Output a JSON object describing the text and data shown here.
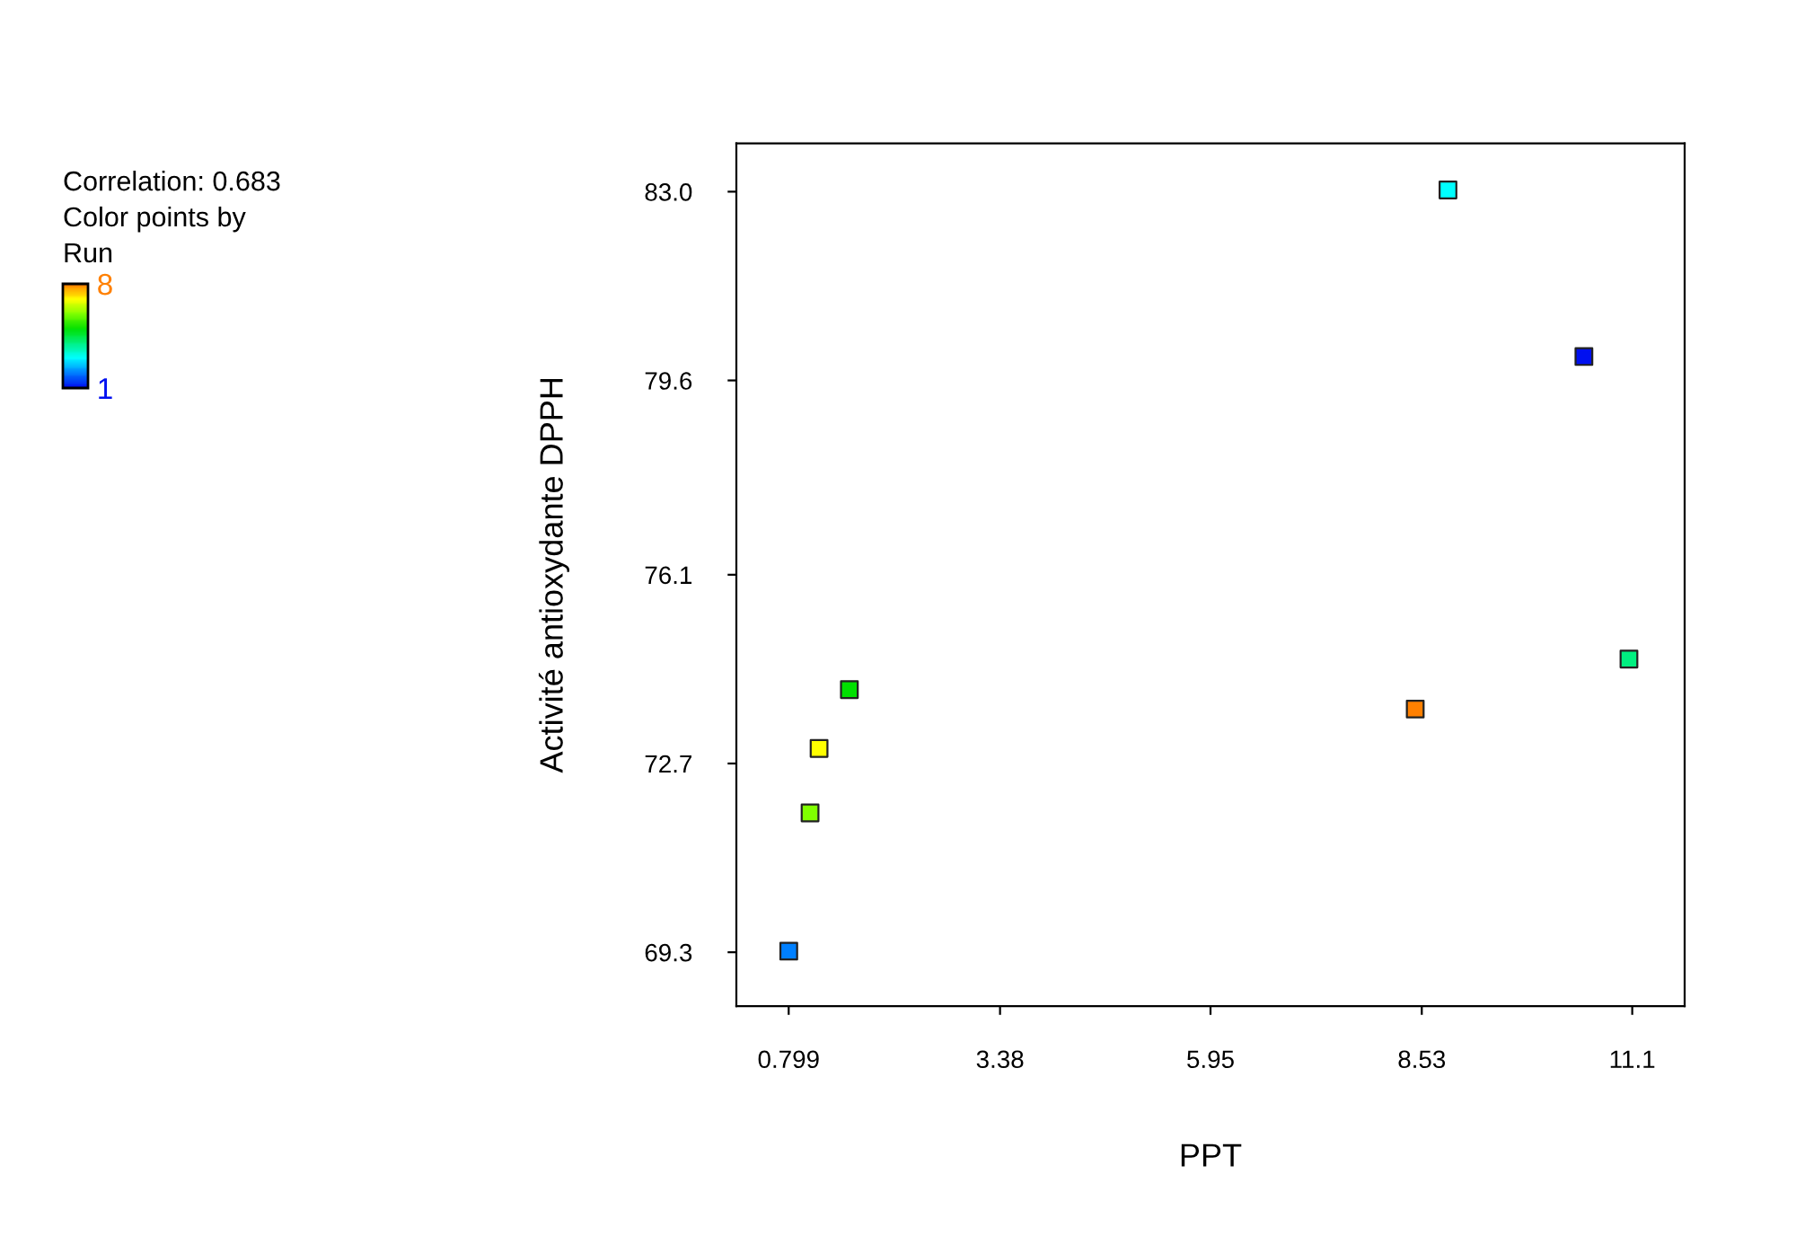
{
  "chart_data": {
    "type": "scatter",
    "xlabel": "PPT",
    "ylabel": "Activité antioxydante DPPH",
    "clabel": "Run",
    "annotations": [
      "Correlation: 0.683",
      "Color points by"
    ],
    "x": [
      10.51,
      0.8,
      8.85,
      11.06,
      1.54,
      1.06,
      1.17,
      8.45
    ],
    "values": [
      80.03,
      69.32,
      83.03,
      74.58,
      74.03,
      71.81,
      72.97,
      73.68
    ],
    "cvalues": [
      1,
      2,
      3,
      4,
      5,
      6,
      7,
      8
    ],
    "colors": [
      "#0010f0",
      "#0080ff",
      "#00ffff",
      "#00f080",
      "#00e000",
      "#80ff00",
      "#ffff00",
      "#ff8000"
    ],
    "clim": [
      1,
      8
    ],
    "cticks": [
      1,
      8
    ],
    "xlim": [
      0.16,
      11.74
    ],
    "xticks": [
      0.799,
      3.38,
      5.95,
      8.53,
      11.1
    ],
    "ylim": [
      68.33,
      83.87
    ],
    "yticks": [
      {
        "value": 69.3,
        "label": "69.3"
      },
      {
        "value": 72.7,
        "label": "72.7"
      },
      {
        "value": 76.1,
        "label": "76.1"
      },
      {
        "value": 79.6,
        "label": "79.6"
      },
      {
        "value": 83.0,
        "label": "83.0"
      }
    ],
    "marker": "square",
    "grid": false,
    "legend": false
  }
}
